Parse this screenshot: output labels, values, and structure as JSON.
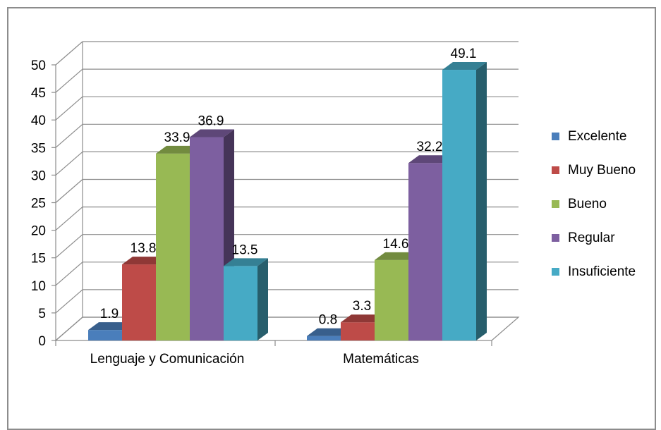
{
  "chart_data": {
    "type": "bar",
    "categories": [
      "Lenguaje y Comunicación",
      "Matemáticas"
    ],
    "series": [
      {
        "name": "Excelente",
        "values": [
          1.9,
          0.8
        ],
        "color": "#4a7ebb"
      },
      {
        "name": "Muy Bueno",
        "values": [
          13.8,
          3.3
        ],
        "color": "#be4b48"
      },
      {
        "name": "Bueno",
        "values": [
          33.9,
          14.6
        ],
        "color": "#98b954"
      },
      {
        "name": "Regular",
        "values": [
          36.9,
          32.2
        ],
        "color": "#7d5fa0"
      },
      {
        "name": "Insuficiente",
        "values": [
          13.5,
          49.1
        ],
        "color": "#46aac5"
      }
    ],
    "yticks": [
      "0",
      "5",
      "10",
      "15",
      "20",
      "25",
      "30",
      "35",
      "40",
      "45",
      "50"
    ],
    "ylim": [
      0,
      50
    ],
    "grid": true,
    "legend": "right",
    "title": "",
    "xlabel": "",
    "ylabel": ""
  }
}
